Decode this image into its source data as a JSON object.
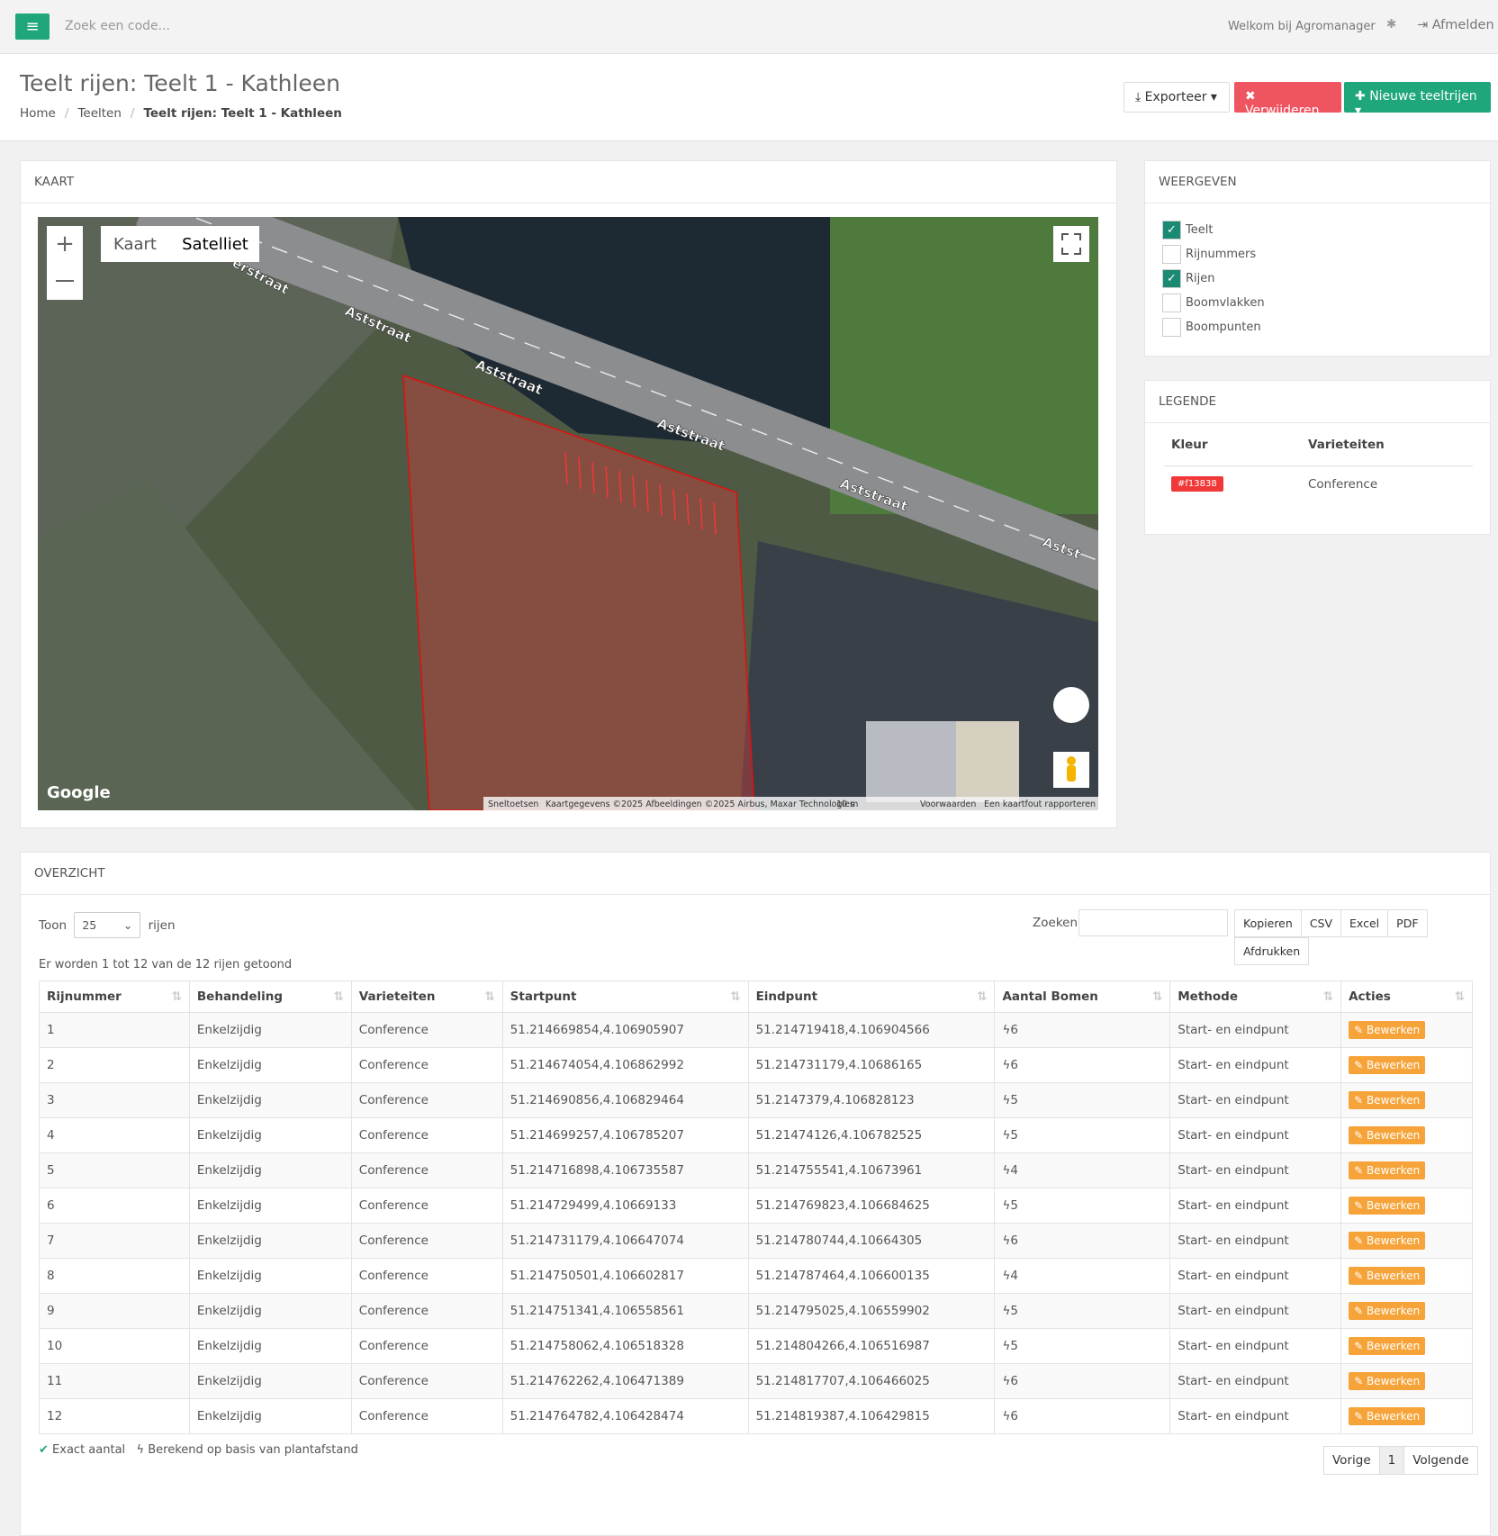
{
  "topbar": {
    "search_placeholder": "Zoek een code...",
    "welcome": "Welkom bij Agromanager",
    "logout": "Afmelden"
  },
  "header": {
    "title": "Teelt rijen: Teelt 1 - Kathleen",
    "breadcrumb": [
      "Home",
      "Teelten",
      "Teelt rijen: Teelt 1 - Kathleen"
    ],
    "buttons": [
      "Exporteer",
      "Verwijderen",
      "Nieuwe teeltrijen"
    ]
  },
  "map": {
    "title": "KAART",
    "map_types": [
      "Kaart",
      "Satelliet"
    ],
    "street_labels": [
      "erstraat",
      "Aststraat",
      "Aststraat",
      "Aststraat",
      "Aststraat",
      "Astst"
    ],
    "logo": "Google",
    "attribution": [
      "Sneltoetsen",
      "Kaartgegevens ©2025 Afbeeldingen ©2025 Airbus, Maxar Technologies",
      "10 m",
      "Voorwaarden",
      "Een kaartfout rapporteren"
    ]
  },
  "display": {
    "title": "WEERGEVEN",
    "options": [
      {
        "label": "Teelt",
        "checked": true
      },
      {
        "label": "Rijnummers",
        "checked": false
      },
      {
        "label": "Rijen",
        "checked": true
      },
      {
        "label": "Boomvlakken",
        "checked": false
      },
      {
        "label": "Boompunten",
        "checked": false
      }
    ]
  },
  "legend": {
    "title": "LEGENDE",
    "columns": [
      "Kleur",
      "Varieteiten"
    ],
    "rows": [
      {
        "color": "#f13838",
        "variety": "Conference"
      }
    ]
  },
  "overview": {
    "title": "OVERZICHT",
    "show_label": "Toon",
    "page_size": "25",
    "rows_label": "rijen",
    "search_label": "Zoeken",
    "export_buttons": [
      "Kopieren",
      "CSV",
      "Excel",
      "PDF",
      "Afdrukken"
    ],
    "info": "Er worden 1 tot 12 van de 12 rijen getoond",
    "columns": [
      "Rijnummer",
      "Behandeling",
      "Varieteiten",
      "Startpunt",
      "Eindpunt",
      "Aantal Bomen",
      "Methode",
      "Acties"
    ],
    "rows": [
      [
        "1",
        "Enkelzijdig",
        "Conference",
        "51.214669854,4.106905907",
        "51.214719418,4.106904566",
        "6",
        "Start- en eindpunt",
        "Bewerken"
      ],
      [
        "2",
        "Enkelzijdig",
        "Conference",
        "51.214674054,4.106862992",
        "51.214731179,4.10686165",
        "6",
        "Start- en eindpunt",
        "Bewerken"
      ],
      [
        "3",
        "Enkelzijdig",
        "Conference",
        "51.214690856,4.106829464",
        "51.2147379,4.106828123",
        "5",
        "Start- en eindpunt",
        "Bewerken"
      ],
      [
        "4",
        "Enkelzijdig",
        "Conference",
        "51.214699257,4.106785207",
        "51.21474126,4.106782525",
        "5",
        "Start- en eindpunt",
        "Bewerken"
      ],
      [
        "5",
        "Enkelzijdig",
        "Conference",
        "51.214716898,4.106735587",
        "51.214755541,4.10673961",
        "4",
        "Start- en eindpunt",
        "Bewerken"
      ],
      [
        "6",
        "Enkelzijdig",
        "Conference",
        "51.214729499,4.10669133",
        "51.214769823,4.106684625",
        "5",
        "Start- en eindpunt",
        "Bewerken"
      ],
      [
        "7",
        "Enkelzijdig",
        "Conference",
        "51.214731179,4.106647074",
        "51.214780744,4.10664305",
        "6",
        "Start- en eindpunt",
        "Bewerken"
      ],
      [
        "8",
        "Enkelzijdig",
        "Conference",
        "51.214750501,4.106602817",
        "51.214787464,4.106600135",
        "4",
        "Start- en eindpunt",
        "Bewerken"
      ],
      [
        "9",
        "Enkelzijdig",
        "Conference",
        "51.214751341,4.106558561",
        "51.214795025,4.106559902",
        "5",
        "Start- en eindpunt",
        "Bewerken"
      ],
      [
        "10",
        "Enkelzijdig",
        "Conference",
        "51.214758062,4.106518328",
        "51.214804266,4.106516987",
        "5",
        "Start- en eindpunt",
        "Bewerken"
      ],
      [
        "11",
        "Enkelzijdig",
        "Conference",
        "51.214762262,4.106471389",
        "51.214817707,4.106466025",
        "6",
        "Start- en eindpunt",
        "Bewerken"
      ],
      [
        "12",
        "Enkelzijdig",
        "Conference",
        "51.214764782,4.106428474",
        "51.214819387,4.106429815",
        "6",
        "Start- en eindpunt",
        "Bewerken"
      ]
    ],
    "footnotes": [
      "Exact aantal",
      "Berekend op basis van plantafstand"
    ],
    "pagination": [
      "Vorige",
      "1",
      "Volgende"
    ]
  }
}
